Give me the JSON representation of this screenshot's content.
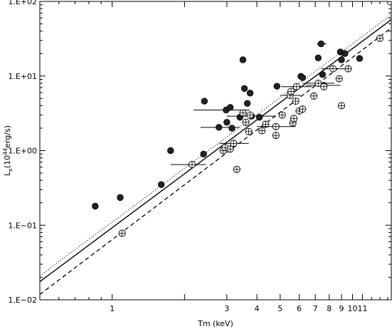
{
  "chart_data": {
    "type": "scatter",
    "xscale": "log",
    "yscale": "log",
    "xlim": [
      0.5,
      14.5
    ],
    "ylim": [
      0.01,
      100
    ],
    "xlabel": "Tm (keV)",
    "ylabel": "L",
    "ylabel_sub": "x",
    "ylabel_units": "(10",
    "ylabel_exp": "44",
    "ylabel_tail": "erg/s)",
    "xticks": [
      1,
      2,
      3,
      4,
      5,
      6,
      7,
      8,
      9,
      10,
      11
    ],
    "xtick_labels": [
      "1",
      "",
      "3",
      "4",
      "5",
      "6",
      "7",
      "8",
      "9",
      "10",
      "11"
    ],
    "yticks": [
      0.01,
      0.1,
      1,
      10,
      100
    ],
    "ytick_labels": [
      "1.E−02",
      "1.E−01",
      "1.E+00",
      "1.E+01",
      "1.E+02"
    ],
    "lines": [
      {
        "style": "dotted",
        "x": [
          0.5,
          14.5
        ],
        "y": [
          0.021,
          66
        ]
      },
      {
        "style": "solid",
        "x": [
          0.5,
          14.5
        ],
        "y": [
          0.0175,
          57
        ]
      },
      {
        "style": "dashed",
        "x": [
          0.5,
          14.5
        ],
        "y": [
          0.0118,
          44
        ]
      }
    ],
    "series": [
      {
        "marker": "filled-circle",
        "points": [
          {
            "x": 0.85,
            "y": 0.18
          },
          {
            "x": 1.08,
            "y": 0.235
          },
          {
            "x": 1.6,
            "y": 0.35
          },
          {
            "x": 1.75,
            "y": 1.0
          },
          {
            "x": 2.4,
            "y": 0.9
          },
          {
            "x": 2.42,
            "y": 4.6
          },
          {
            "x": 2.78,
            "y": 2.05,
            "xerr": [
              0.45,
              0.6
            ]
          },
          {
            "x": 2.98,
            "y": 3.5,
            "xerr": [
              0.8,
              0.75
            ]
          },
          {
            "x": 3.0,
            "y": 2.4
          },
          {
            "x": 3.1,
            "y": 3.8
          },
          {
            "x": 3.15,
            "y": 2.0
          },
          {
            "x": 3.4,
            "y": 2.8
          },
          {
            "x": 3.5,
            "y": 16.5
          },
          {
            "x": 3.55,
            "y": 6.8
          },
          {
            "x": 3.65,
            "y": 4.3
          },
          {
            "x": 3.75,
            "y": 5.9
          },
          {
            "x": 3.8,
            "y": 2.9,
            "xerr": [
              0.8,
              1.0
            ]
          },
          {
            "x": 4.1,
            "y": 2.8
          },
          {
            "x": 4.85,
            "y": 7.3
          },
          {
            "x": 6.1,
            "y": 9.9
          },
          {
            "x": 6.2,
            "y": 9.5
          },
          {
            "x": 7.2,
            "y": 17.5
          },
          {
            "x": 7.4,
            "y": 27,
            "xerr": [
              0.3,
              0.4
            ]
          },
          {
            "x": 7.5,
            "y": 10.5
          },
          {
            "x": 7.6,
            "y": 7.5,
            "xerr": [
              1.2,
              1.3
            ]
          },
          {
            "x": 8.9,
            "y": 21
          },
          {
            "x": 9.3,
            "y": 20
          },
          {
            "x": 9.0,
            "y": 16.5
          },
          {
            "x": 10.7,
            "y": 17.2
          }
        ]
      },
      {
        "marker": "open-circle-cross",
        "points": [
          {
            "x": 1.1,
            "y": 0.078
          },
          {
            "x": 2.15,
            "y": 0.65,
            "xerr": [
              0.4,
              0.3
            ]
          },
          {
            "x": 2.9,
            "y": 1.0
          },
          {
            "x": 2.95,
            "y": 1.1
          },
          {
            "x": 3.1,
            "y": 1.05
          },
          {
            "x": 3.2,
            "y": 1.25,
            "xerr": [
              0.4,
              0.5
            ]
          },
          {
            "x": 3.3,
            "y": 0.56
          },
          {
            "x": 3.5,
            "y": 3.2
          },
          {
            "x": 3.6,
            "y": 2.4
          },
          {
            "x": 3.7,
            "y": 1.8
          },
          {
            "x": 3.75,
            "y": 3.0
          },
          {
            "x": 4.2,
            "y": 1.85
          },
          {
            "x": 4.35,
            "y": 2.25
          },
          {
            "x": 4.8,
            "y": 1.6
          },
          {
            "x": 4.8,
            "y": 2.1,
            "xerr": [
              0.8,
              1.0
            ]
          },
          {
            "x": 5.1,
            "y": 3.0
          },
          {
            "x": 5.5,
            "y": 5.5,
            "xerr": [
              0.5,
              0.6
            ]
          },
          {
            "x": 5.55,
            "y": 6.2
          },
          {
            "x": 5.65,
            "y": 2.35
          },
          {
            "x": 5.7,
            "y": 2.7
          },
          {
            "x": 5.8,
            "y": 4.6
          },
          {
            "x": 5.85,
            "y": 7.2,
            "xerr": [
              0.8,
              0.9
            ]
          },
          {
            "x": 6.0,
            "y": 3.4
          },
          {
            "x": 6.2,
            "y": 3.6
          },
          {
            "x": 6.9,
            "y": 5.4
          },
          {
            "x": 7.2,
            "y": 8.0,
            "xerr": [
              1.0,
              1.2
            ]
          },
          {
            "x": 7.6,
            "y": 7.2
          },
          {
            "x": 8.3,
            "y": 12.5,
            "xerr": [
              0.9,
              1.1
            ]
          },
          {
            "x": 8.8,
            "y": 9.2
          },
          {
            "x": 9.0,
            "y": 4.0
          },
          {
            "x": 9.6,
            "y": 12.5
          },
          {
            "x": 13.0,
            "y": 32
          }
        ]
      }
    ]
  }
}
